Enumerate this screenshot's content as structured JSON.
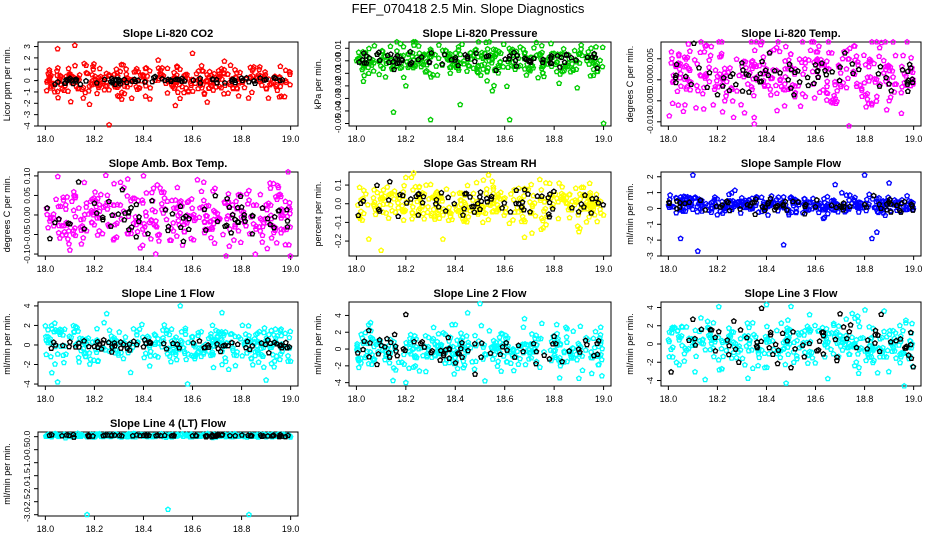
{
  "page": {
    "title": "FEF_070418  2.5 Min. Slope Diagnostics"
  },
  "x_axis": {
    "range": [
      17.97,
      19.03
    ],
    "ticks": [
      18.0,
      18.2,
      18.4,
      18.6,
      18.8,
      19.0
    ],
    "tick_labels": [
      "18.0",
      "18.2",
      "18.4",
      "18.6",
      "18.8",
      "19.0"
    ]
  },
  "chart_data": [
    {
      "type": "scatter",
      "title": "Slope Li-820 CO2",
      "ylabel": "Licor ppm per min.",
      "ylim": [
        -4.0,
        3.4
      ],
      "yticks": [
        -4,
        -3,
        -2,
        -1,
        0,
        1,
        2,
        3
      ],
      "ytick_labels": [
        "-4",
        "-3",
        "-2",
        "-1",
        "0",
        "1",
        "2",
        "3"
      ],
      "series": [
        {
          "name": "all",
          "color": "#ff0000",
          "center": 0.0,
          "spread": 0.75,
          "x": [
            18.05,
            18.12,
            18.18,
            18.26,
            18.31,
            18.46,
            18.53,
            18.6,
            18.66,
            18.73,
            18.85,
            18.98
          ],
          "y": [
            2.8,
            3.1,
            -2.1,
            -3.9,
            1.4,
            1.8,
            -2.2,
            2.4,
            -1.9,
            1.7,
            1.2,
            0.9
          ]
        },
        {
          "name": "selected",
          "color": "#000000",
          "center": 0.0,
          "spread": 0.15,
          "x": [
            18.1,
            18.3,
            18.5,
            18.7,
            18.9
          ],
          "y": [
            0.2,
            -0.1,
            0.1,
            -0.2,
            0.1
          ]
        }
      ]
    },
    {
      "type": "scatter",
      "title": "Slope Li-820 Pressure",
      "ylabel": "kPa per min.",
      "ylim": [
        -0.052,
        0.015
      ],
      "yticks": [
        -0.05,
        -0.04,
        -0.03,
        -0.02,
        -0.01,
        0.0,
        0.01
      ],
      "ytick_labels": [
        "-0.05",
        "-0.04",
        "-0.03",
        "-0.02",
        "-0.01",
        "0.00",
        "0.01"
      ],
      "series": [
        {
          "name": "all",
          "color": "#00cc00",
          "center": 0.0,
          "spread": 0.007,
          "x": [
            18.15,
            18.2,
            18.3,
            18.42,
            18.55,
            18.62,
            18.75,
            18.82,
            18.9,
            19.0
          ],
          "y": [
            -0.041,
            -0.02,
            -0.047,
            -0.035,
            -0.024,
            -0.047,
            0.012,
            -0.018,
            0.005,
            -0.05
          ]
        },
        {
          "name": "selected",
          "color": "#000000",
          "center": 0.0,
          "spread": 0.003,
          "x": [
            18.03,
            18.25,
            18.45,
            18.65,
            18.85
          ],
          "y": [
            0.006,
            0.001,
            0.002,
            0.004,
            0.005
          ]
        }
      ]
    },
    {
      "type": "scatter",
      "title": "Slope Li-820 Temp.",
      "ylabel": "degrees C per min.",
      "ylim": [
        -0.011,
        0.009
      ],
      "yticks": [
        -0.01,
        -0.005,
        0.0,
        0.005
      ],
      "ytick_labels": [
        "-0.010",
        "-0.005",
        "0.000",
        "0.005"
      ],
      "series": [
        {
          "name": "all",
          "color": "#ff00ff",
          "center": 0.001,
          "spread": 0.0045,
          "x": [
            18.15,
            18.35,
            18.58,
            18.76,
            18.83,
            18.95
          ],
          "y": [
            0.008,
            -0.009,
            0.007,
            0.008,
            0.009,
            -0.008
          ]
        },
        {
          "name": "selected",
          "color": "#000000",
          "center": 0.001,
          "spread": 0.002,
          "x": [
            18.3,
            18.5,
            18.7,
            18.9
          ],
          "y": [
            0.004,
            -0.002,
            0.003,
            -0.001
          ]
        }
      ]
    },
    {
      "type": "scatter",
      "title": "Slope Amb. Box Temp.",
      "ylabel": "degrees C per min.",
      "ylim": [
        -0.105,
        0.11
      ],
      "yticks": [
        -0.1,
        -0.05,
        0.0,
        0.05,
        0.1
      ],
      "ytick_labels": [
        "-0.10",
        "-0.05",
        "0.00",
        "0.05",
        "0.10"
      ],
      "series": [
        {
          "name": "all",
          "color": "#ff00ff",
          "center": 0.0,
          "spread": 0.04,
          "x": [
            18.1,
            18.28,
            18.4,
            18.45,
            18.62,
            18.75,
            18.95
          ],
          "y": [
            -0.09,
            0.08,
            0.1,
            -0.1,
            0.09,
            -0.08,
            0.07
          ]
        },
        {
          "name": "selected",
          "color": "#000000",
          "center": 0.0,
          "spread": 0.03,
          "x": [
            18.2,
            18.5,
            18.8
          ],
          "y": [
            0.03,
            -0.04,
            0.02
          ]
        }
      ]
    },
    {
      "type": "scatter",
      "title": "Slope Gas Stream RH",
      "ylabel": "percent per min.",
      "ylim": [
        -0.28,
        0.17
      ],
      "yticks": [
        -0.2,
        -0.1,
        0.0,
        0.1
      ],
      "ytick_labels": [
        "-0.2",
        "-0.1",
        "0.0",
        "0.1"
      ],
      "series": [
        {
          "name": "all",
          "color": "#ffff00",
          "center": 0.0,
          "spread": 0.055,
          "x": [
            18.05,
            18.1,
            18.2,
            18.35,
            18.55,
            18.68,
            18.82,
            18.9
          ],
          "y": [
            -0.19,
            -0.25,
            0.14,
            -0.19,
            0.12,
            -0.18,
            0.11,
            -0.15
          ]
        },
        {
          "name": "selected",
          "color": "#000000",
          "center": 0.0,
          "spread": 0.04,
          "x": [
            18.25,
            18.5,
            18.75,
            18.95
          ],
          "y": [
            0.05,
            -0.03,
            0.04,
            -0.05
          ]
        }
      ]
    },
    {
      "type": "scatter",
      "title": "Slope Sample Flow",
      "ylabel": "ml/min per min.",
      "ylim": [
        -3.0,
        2.3
      ],
      "yticks": [
        -3,
        -2,
        -1,
        0,
        1,
        2
      ],
      "ytick_labels": [
        "-3",
        "-2",
        "-1",
        "0",
        "1",
        "2"
      ],
      "series": [
        {
          "name": "all",
          "color": "#0000ff",
          "center": 0.2,
          "spread": 0.3,
          "x": [
            18.05,
            18.1,
            18.12,
            18.47,
            18.68,
            18.8,
            18.83,
            18.85,
            18.9
          ],
          "y": [
            -1.9,
            2.1,
            -2.7,
            -2.3,
            1.5,
            2.1,
            -1.9,
            -1.5,
            1.6
          ]
        },
        {
          "name": "selected",
          "color": "#000000",
          "center": 0.2,
          "spread": 0.25,
          "x": [
            18.35,
            18.6,
            18.95
          ],
          "y": [
            0.4,
            0.1,
            0.3
          ]
        }
      ]
    },
    {
      "type": "scatter",
      "title": "Slope Line 1 Flow",
      "ylabel": "ml/min per min.",
      "ylim": [
        -4.2,
        4.4
      ],
      "yticks": [
        -4,
        -2,
        0,
        2,
        4
      ],
      "ytick_labels": [
        "-4",
        "-2",
        "0",
        "2",
        "4"
      ],
      "series": [
        {
          "name": "all",
          "color": "#00ffff",
          "center": 0.0,
          "spread": 1.1,
          "x": [
            18.05,
            18.25,
            18.55,
            18.58,
            18.72,
            18.9
          ],
          "y": [
            -3.8,
            3.2,
            4.0,
            -4.0,
            3.3,
            -3.6
          ]
        },
        {
          "name": "selected",
          "color": "#000000",
          "center": 0.0,
          "spread": 0.3,
          "x": [
            18.1,
            18.4,
            18.7
          ],
          "y": [
            0.3,
            -0.2,
            0.1
          ]
        }
      ]
    },
    {
      "type": "scatter",
      "title": "Slope Line 2 Flow",
      "ylabel": "ml/min per min.",
      "ylim": [
        -4.4,
        5.6
      ],
      "yticks": [
        -4,
        -2,
        0,
        2,
        4
      ],
      "ytick_labels": [
        "-4",
        "-2",
        "0",
        "2",
        "4"
      ],
      "series": [
        {
          "name": "all",
          "color": "#00ffff",
          "center": 0.0,
          "spread": 1.3,
          "x": [
            18.2,
            18.45,
            18.5,
            18.52,
            18.68,
            18.9
          ],
          "y": [
            -4.0,
            4.3,
            5.4,
            -3.8,
            3.6,
            -3.5
          ]
        },
        {
          "name": "selected",
          "color": "#000000",
          "center": 0.0,
          "spread": 0.9,
          "x": [
            18.05,
            18.2,
            18.48,
            18.8
          ],
          "y": [
            2.2,
            4.1,
            -3.0,
            1.5
          ]
        }
      ]
    },
    {
      "type": "scatter",
      "title": "Slope Line 3 Flow",
      "ylabel": "ml/min per min.",
      "ylim": [
        -4.6,
        4.6
      ],
      "yticks": [
        -4,
        -2,
        0,
        2,
        4
      ],
      "ytick_labels": [
        "-4",
        "-2",
        "0",
        "2",
        "4"
      ],
      "series": [
        {
          "name": "all",
          "color": "#00ffff",
          "center": 0.0,
          "spread": 1.4,
          "x": [
            18.15,
            18.4,
            18.48,
            18.5,
            18.65,
            18.88
          ],
          "y": [
            -3.9,
            4.3,
            -4.3,
            4.1,
            -3.8,
            3.6
          ]
        },
        {
          "name": "selected",
          "color": "#000000",
          "center": 0.0,
          "spread": 1.1,
          "x": [
            18.1,
            18.38,
            18.5,
            18.7
          ],
          "y": [
            2.7,
            3.9,
            -2.6,
            3.3
          ]
        }
      ]
    },
    {
      "type": "scatter",
      "title": "Slope Line 4 (LT) Flow",
      "ylabel": "ml/min per min.",
      "ylim": [
        -3.05,
        0.18
      ],
      "yticks": [
        -3.0,
        -2.5,
        -2.0,
        -1.5,
        -1.0,
        -0.5,
        0.0
      ],
      "ytick_labels": [
        "-3.0",
        "-2.5",
        "-2.0",
        "-1.5",
        "-1.0",
        "-0.5",
        "0.0"
      ],
      "series": [
        {
          "name": "all",
          "color": "#00ffff",
          "center": 0.04,
          "spread": 0.03,
          "x": [
            18.17,
            18.5,
            18.83
          ],
          "y": [
            -3.0,
            -2.8,
            -3.0
          ]
        },
        {
          "name": "selected",
          "color": "#000000",
          "center": 0.04,
          "spread": 0.02,
          "x": [
            18.4,
            18.6
          ],
          "y": [
            0.05,
            0.03
          ]
        }
      ]
    }
  ]
}
